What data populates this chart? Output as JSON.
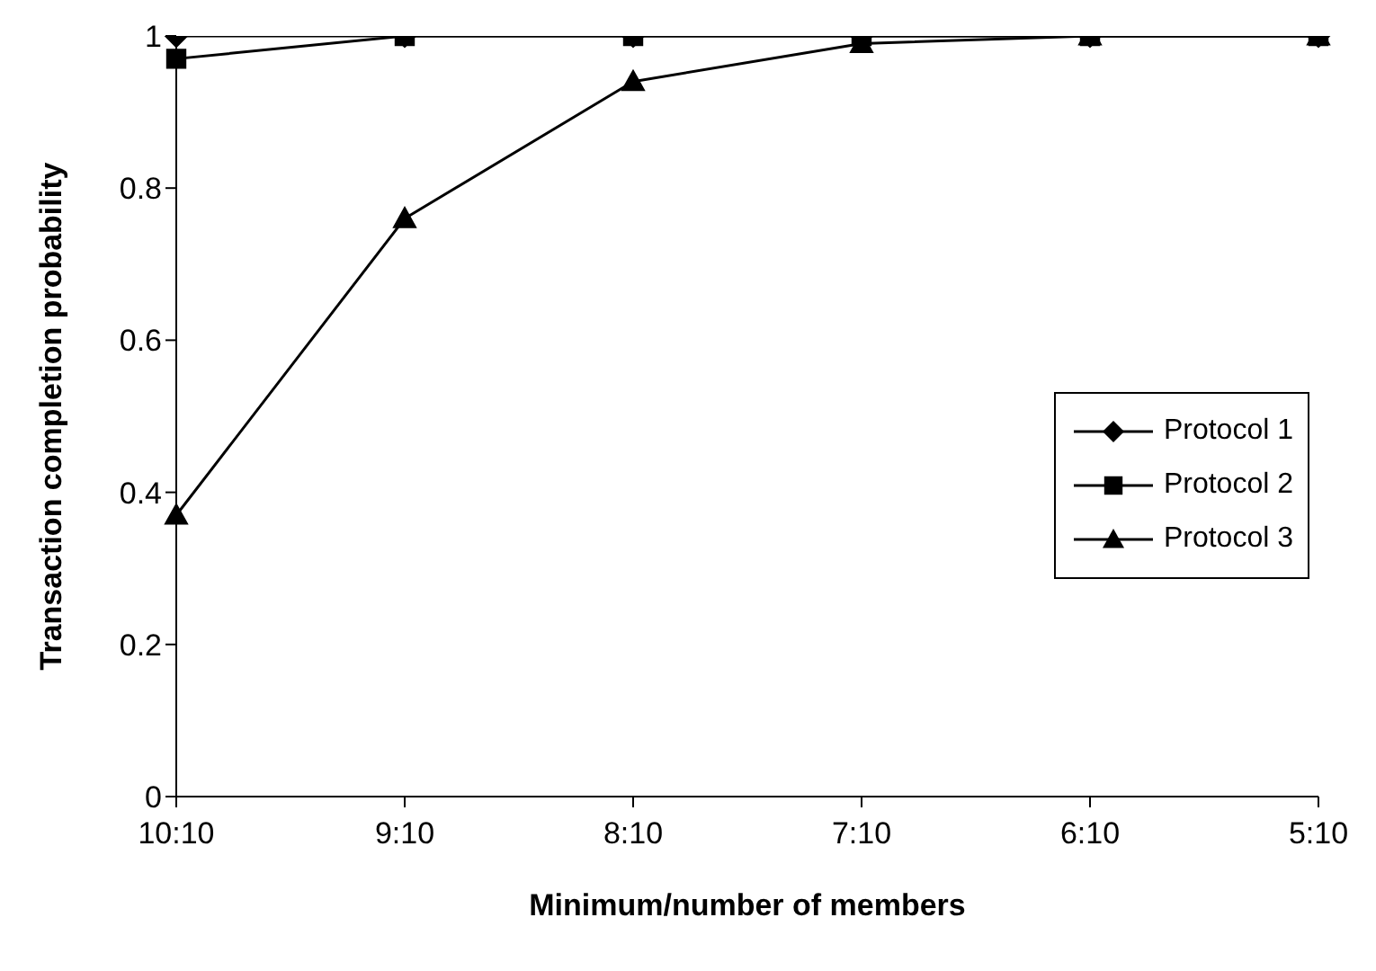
{
  "chart_data": {
    "type": "line",
    "xlabel": "Minimum/number of members",
    "ylabel": "Transaction completion probability",
    "categories": [
      "10:10",
      "9:10",
      "8:10",
      "7:10",
      "6:10",
      "5:10"
    ],
    "ylim": [
      0,
      1
    ],
    "yticks": [
      0,
      0.2,
      0.4,
      0.6,
      0.8,
      1
    ],
    "grid": false,
    "legend": "right",
    "line_style": "solid",
    "series": [
      {
        "name": "Protocol 1",
        "color": "#000000",
        "marker": "diamond",
        "values": [
          1,
          1,
          1,
          1,
          1,
          1
        ]
      },
      {
        "name": "Protocol 2",
        "color": "#000000",
        "marker": "square",
        "values": [
          0.97,
          1,
          1,
          1,
          1,
          1
        ]
      },
      {
        "name": "Protocol 3",
        "color": "#000000",
        "marker": "triangle",
        "values": [
          0.37,
          0.76,
          0.94,
          0.99,
          1,
          1
        ]
      }
    ]
  }
}
